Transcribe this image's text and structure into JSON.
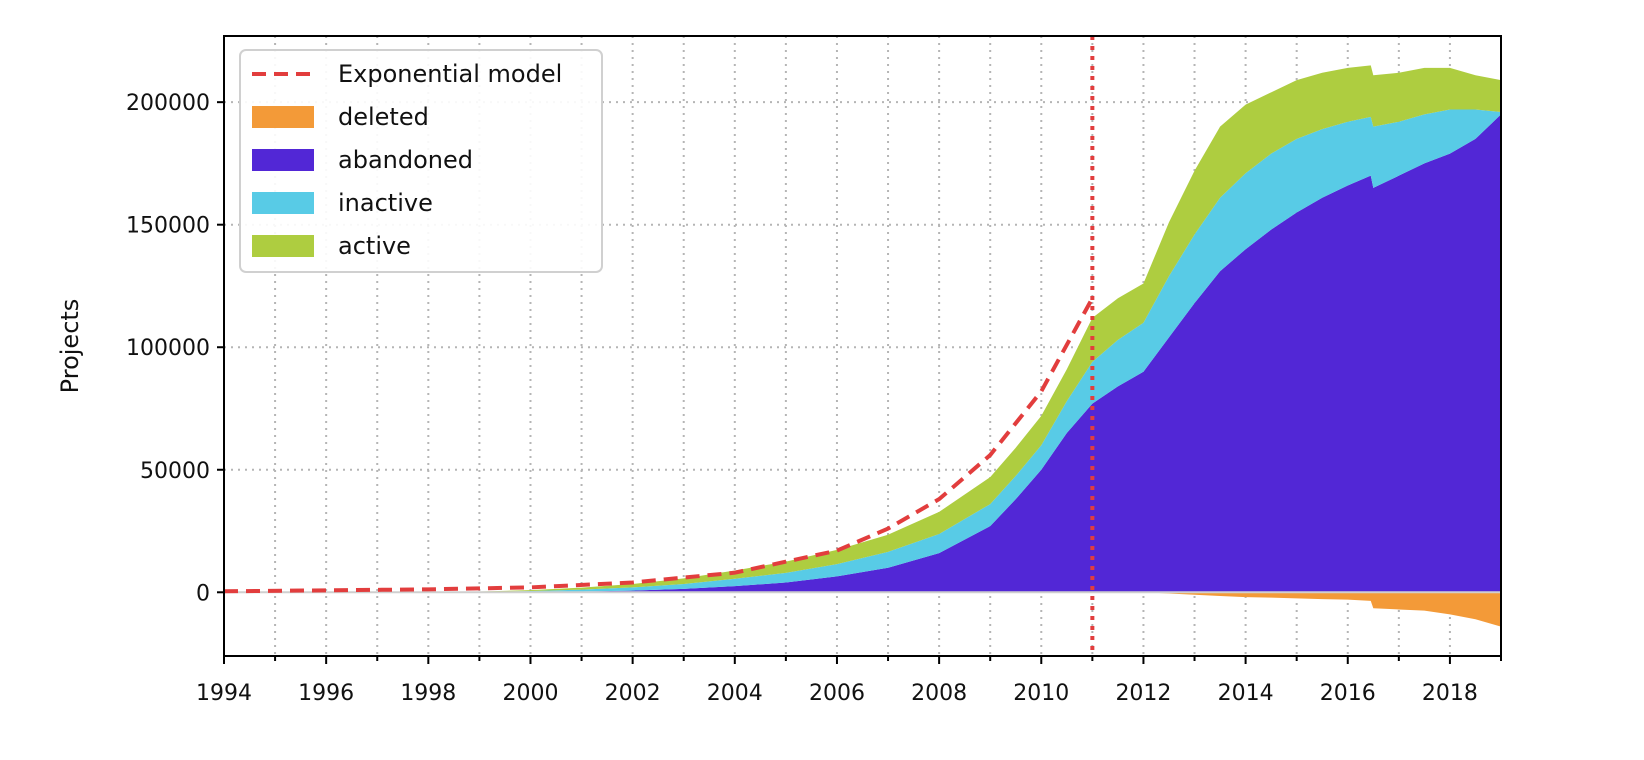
{
  "chart_data": {
    "type": "area",
    "stacked": true,
    "title": "",
    "xlabel": "",
    "ylabel": "Projects",
    "xlim": [
      1994,
      2019
    ],
    "ylim": [
      -26000,
      227000
    ],
    "x_ticks": [
      "1994",
      "1996",
      "1998",
      "2000",
      "2002",
      "2004",
      "2006",
      "2008",
      "2010",
      "2012",
      "2014",
      "2016",
      "2018"
    ],
    "y_ticks": [
      "0",
      "50000",
      "100000",
      "150000",
      "200000"
    ],
    "x_minor_step": 1,
    "grid": "dotted",
    "legend_position": "top-left",
    "reference_line_x": 2011,
    "colors": {
      "deleted": "#f39a38",
      "abandoned": "#5227d6",
      "inactive": "#58cbe6",
      "active": "#aecd40",
      "model": "#e23d3d"
    },
    "x": [
      1994,
      1996,
      1998,
      1999,
      2000,
      2001,
      2002,
      2003,
      2004,
      2005,
      2006,
      2007,
      2008,
      2009,
      2009.5,
      2010,
      2010.5,
      2011,
      2011.5,
      2012,
      2012.5,
      2013,
      2013.5,
      2014,
      2014.5,
      2015,
      2015.5,
      2016,
      2016.45,
      2016.5,
      2017,
      2017.5,
      2018,
      2018.5,
      2019
    ],
    "series": [
      {
        "name": "deleted",
        "values": [
          0,
          0,
          0,
          0,
          0,
          0,
          0,
          0,
          0,
          0,
          0,
          0,
          0,
          0,
          0,
          0,
          0,
          0,
          0,
          0,
          -500,
          -1000,
          -1500,
          -2000,
          -2200,
          -2500,
          -2800,
          -3000,
          -3500,
          -6500,
          -7000,
          -7500,
          -9000,
          -11000,
          -14000
        ]
      },
      {
        "name": "abandoned",
        "values": [
          0,
          0,
          0,
          0,
          100,
          300,
          700,
          1400,
          2500,
          4000,
          6500,
          10000,
          16000,
          27000,
          38000,
          50000,
          65000,
          77000,
          84000,
          90000,
          104000,
          118000,
          131000,
          140000,
          148000,
          155000,
          161000,
          166000,
          170000,
          165000,
          170000,
          175000,
          179000,
          185000,
          195000
        ]
      },
      {
        "name": "inactive",
        "values": [
          0,
          0,
          0,
          100,
          400,
          800,
          1300,
          2000,
          3000,
          3900,
          5000,
          6500,
          7800,
          9000,
          9500,
          10000,
          13000,
          17000,
          19000,
          20000,
          25000,
          28000,
          30000,
          31000,
          31000,
          30000,
          28000,
          26000,
          24000,
          25000,
          22000,
          20000,
          18000,
          12000,
          1000
        ]
      },
      {
        "name": "active",
        "values": [
          0,
          0,
          100,
          200,
          400,
          800,
          1400,
          2300,
          3400,
          4600,
          5800,
          7000,
          9000,
          11000,
          11500,
          12000,
          13000,
          18000,
          17000,
          16000,
          22000,
          26000,
          29000,
          28000,
          25000,
          24000,
          23000,
          22000,
          21000,
          21000,
          20000,
          19000,
          17000,
          14000,
          13000
        ]
      },
      {
        "name": "Exponential model",
        "style": "dashed",
        "x": [
          1994,
          1996,
          1998,
          2000,
          2002,
          2004,
          2006,
          2007,
          2008,
          2009,
          2010,
          2011
        ],
        "values": [
          400,
          800,
          1200,
          2000,
          4000,
          8000,
          17000,
          26000,
          38000,
          56000,
          82000,
          120000
        ]
      }
    ],
    "legend": [
      "Exponential model",
      "deleted",
      "abandoned",
      "inactive",
      "active"
    ]
  }
}
